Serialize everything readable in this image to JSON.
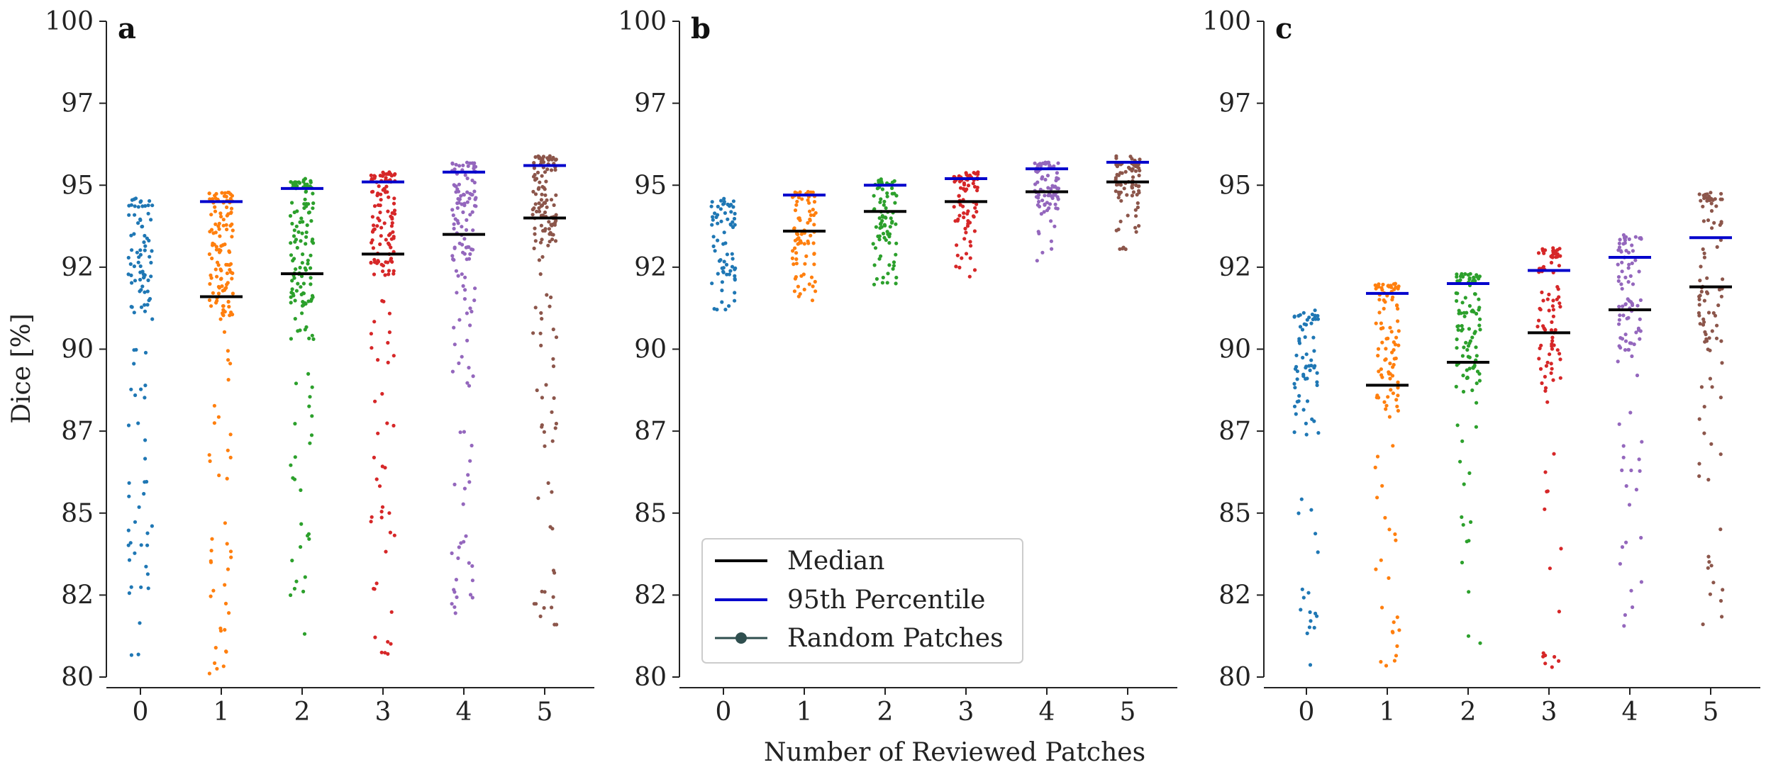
{
  "figure": {
    "ylabel": "Dice [%]",
    "xlabel": "Number of Reviewed Patches",
    "legend": {
      "placement": "lower-left of panel b",
      "items": [
        {
          "label": "Median",
          "color": "#000000",
          "style": "line"
        },
        {
          "label": "95th Percentile",
          "color": "#0000cc",
          "style": "line"
        },
        {
          "label": "Random Patches",
          "color": "#2f4f4f",
          "style": "line-with-marker"
        }
      ]
    },
    "colors": [
      "#1f77b4",
      "#ff7f0e",
      "#2ca02c",
      "#d62728",
      "#9467bd",
      "#8c564b"
    ]
  },
  "chart_data": [
    {
      "type": "scatter",
      "panel": "a",
      "categories": [
        "0",
        "1",
        "2",
        "3",
        "4",
        "5"
      ],
      "ylim": [
        80,
        100
      ],
      "yticks": [
        "80",
        "82",
        "85",
        "87",
        "90",
        "92",
        "95",
        "97",
        "100"
      ],
      "median": [
        null,
        91.6,
        92.3,
        92.9,
        93.5,
        94.0
      ],
      "p95": [
        null,
        94.5,
        94.9,
        95.1,
        95.4,
        95.6
      ],
      "distributions": [
        {
          "min": 80.3,
          "max": 94.6,
          "n": 110,
          "center": 92.4
        },
        {
          "min": 80.1,
          "max": 94.8,
          "n": 160,
          "center": 92.6
        },
        {
          "min": 80.7,
          "max": 95.2,
          "n": 150,
          "center": 93.0
        },
        {
          "min": 80.2,
          "max": 95.4,
          "n": 150,
          "center": 93.6
        },
        {
          "min": 81.5,
          "max": 95.7,
          "n": 140,
          "center": 94.0
        },
        {
          "min": 81.1,
          "max": 95.9,
          "n": 150,
          "center": 94.4
        }
      ]
    },
    {
      "type": "scatter",
      "panel": "b",
      "categories": [
        "0",
        "1",
        "2",
        "3",
        "4",
        "5"
      ],
      "ylim": [
        80,
        100
      ],
      "yticks": [
        "80",
        "82",
        "85",
        "87",
        "90",
        "92",
        "95",
        "97",
        "100"
      ],
      "median": [
        null,
        93.6,
        94.2,
        94.5,
        94.8,
        95.1
      ],
      "p95": [
        null,
        94.7,
        95.0,
        95.2,
        95.5,
        95.7
      ],
      "distributions": [
        {
          "min": 91.2,
          "max": 94.6,
          "n": 70,
          "center": 93.0
        },
        {
          "min": 91.4,
          "max": 94.8,
          "n": 80,
          "center": 93.7
        },
        {
          "min": 91.7,
          "max": 95.2,
          "n": 80,
          "center": 94.2
        },
        {
          "min": 92.1,
          "max": 95.4,
          "n": 80,
          "center": 94.5
        },
        {
          "min": 92.6,
          "max": 95.7,
          "n": 80,
          "center": 94.9
        },
        {
          "min": 93.0,
          "max": 95.9,
          "n": 80,
          "center": 95.2
        }
      ]
    },
    {
      "type": "scatter",
      "panel": "c",
      "categories": [
        "0",
        "1",
        "2",
        "3",
        "4",
        "5"
      ],
      "ylim": [
        80,
        100
      ],
      "yticks": [
        "80",
        "82",
        "85",
        "87",
        "90",
        "92",
        "95",
        "97",
        "100"
      ],
      "median": [
        null,
        88.9,
        89.6,
        90.5,
        91.2,
        91.9
      ],
      "p95": [
        null,
        91.7,
        92.0,
        92.4,
        92.8,
        93.4
      ],
      "distributions": [
        {
          "min": 80.3,
          "max": 91.2,
          "n": 80,
          "center": 89.0
        },
        {
          "min": 80.1,
          "max": 92.0,
          "n": 110,
          "center": 89.8
        },
        {
          "min": 80.7,
          "max": 92.3,
          "n": 110,
          "center": 90.4
        },
        {
          "min": 80.2,
          "max": 93.1,
          "n": 100,
          "center": 91.0
        },
        {
          "min": 81.5,
          "max": 93.5,
          "n": 100,
          "center": 91.5
        },
        {
          "min": 81.1,
          "max": 94.8,
          "n": 100,
          "center": 92.2
        }
      ]
    }
  ]
}
